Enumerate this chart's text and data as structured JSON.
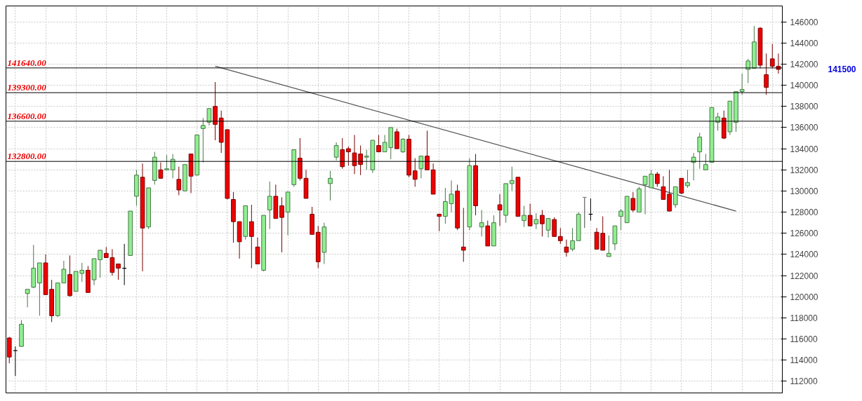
{
  "chart_data": {
    "type": "candlestick",
    "categories": [
      null,
      null,
      null,
      null,
      null,
      null,
      null,
      null,
      null,
      null,
      null,
      null,
      null,
      null,
      null,
      null,
      null,
      null,
      null,
      null,
      null,
      null,
      null,
      null,
      null,
      null,
      null,
      null,
      null,
      null,
      null,
      null,
      null,
      null,
      null,
      null,
      null,
      null,
      null,
      null,
      null,
      null,
      null,
      null,
      null,
      null,
      null,
      null,
      null,
      null,
      null,
      null,
      null,
      null,
      null,
      null,
      null,
      null,
      null,
      null,
      null,
      null,
      null,
      null,
      null,
      null,
      null,
      null,
      null,
      null,
      null,
      null,
      null,
      null,
      null,
      null,
      null,
      null,
      null,
      null,
      null,
      null,
      null,
      null,
      null,
      null,
      null,
      null,
      null,
      null,
      null,
      null,
      null,
      null,
      null,
      null,
      null,
      null,
      null,
      null,
      null,
      null,
      null,
      null,
      null,
      null,
      null,
      null,
      null,
      null,
      null,
      null,
      null,
      null,
      null,
      null,
      null,
      null,
      null,
      null,
      null,
      null,
      null,
      null,
      null,
      null,
      null,
      null
    ],
    "ohlc": [
      [
        116100,
        116200,
        113700,
        114300
      ],
      [
        114900,
        115300,
        112500,
        114900
      ],
      [
        115300,
        117800,
        115300,
        117400
      ],
      [
        120300,
        120700,
        119000,
        120700
      ],
      [
        120900,
        124900,
        120800,
        122700
      ],
      [
        121300,
        123200,
        118200,
        123200
      ],
      [
        123200,
        124000,
        120200,
        120200
      ],
      [
        120700,
        121600,
        117600,
        118200
      ],
      [
        118200,
        121300,
        118100,
        121300
      ],
      [
        121300,
        123400,
        121300,
        122600
      ],
      [
        122100,
        123900,
        120000,
        120100
      ],
      [
        120500,
        122400,
        120500,
        122400
      ],
      [
        122200,
        123200,
        121400,
        122500
      ],
      [
        122500,
        122900,
        120400,
        120400
      ],
      [
        121600,
        123600,
        121100,
        123600
      ],
      [
        123500,
        124400,
        121800,
        124400
      ],
      [
        124100,
        124700,
        123700,
        123700
      ],
      [
        123700,
        124500,
        122000,
        122300
      ],
      [
        123100,
        123100,
        121600,
        122700
      ],
      [
        122700,
        125000,
        121100,
        122700
      ],
      [
        123900,
        128100,
        123900,
        128100
      ],
      [
        129500,
        132000,
        128600,
        131500
      ],
      [
        131300,
        132600,
        122400,
        126500
      ],
      [
        126600,
        130300,
        126400,
        130300
      ],
      [
        131000,
        133700,
        130600,
        133200
      ],
      [
        132000,
        132700,
        131200,
        131200
      ],
      [
        132000,
        133400,
        132000,
        132100
      ],
      [
        132000,
        133500,
        131200,
        133000
      ],
      [
        131100,
        132300,
        129600,
        130100
      ],
      [
        130000,
        132500,
        130000,
        132500
      ],
      [
        133500,
        133500,
        129800,
        131400
      ],
      [
        131500,
        135300,
        131500,
        135300
      ],
      [
        135900,
        136900,
        132700,
        136200
      ],
      [
        136500,
        137800,
        136200,
        137800
      ],
      [
        138000,
        140300,
        134800,
        136300
      ],
      [
        136900,
        137600,
        133600,
        134600
      ],
      [
        135800,
        135800,
        129200,
        129300
      ],
      [
        129200,
        129900,
        125100,
        127100
      ],
      [
        127100,
        127100,
        123600,
        125200
      ],
      [
        125700,
        128600,
        125400,
        128600
      ],
      [
        127100,
        128700,
        122700,
        125700
      ],
      [
        124700,
        125600,
        123100,
        123100
      ],
      [
        122500,
        127700,
        122400,
        127700
      ],
      [
        128200,
        130900,
        126400,
        129500
      ],
      [
        129500,
        130600,
        127400,
        127400
      ],
      [
        128600,
        129400,
        124200,
        127500
      ],
      [
        128000,
        129900,
        125800,
        129900
      ],
      [
        130600,
        133900,
        130400,
        133900
      ],
      [
        133100,
        135000,
        131000,
        131200
      ],
      [
        131200,
        132000,
        129300,
        129300
      ],
      [
        127800,
        128500,
        125900,
        125900
      ],
      [
        126100,
        126700,
        122700,
        123300
      ],
      [
        124200,
        127000,
        123100,
        126600
      ],
      [
        130700,
        131900,
        129100,
        131200
      ],
      [
        133200,
        134600,
        132900,
        134300
      ],
      [
        133900,
        135000,
        132100,
        132300
      ],
      [
        134000,
        134200,
        132400,
        133700
      ],
      [
        133600,
        135300,
        131600,
        132400
      ],
      [
        133500,
        134300,
        131500,
        132500
      ],
      [
        133200,
        133900,
        132000,
        133300
      ],
      [
        132000,
        134800,
        131700,
        134800
      ],
      [
        134300,
        135300,
        133700,
        133700
      ],
      [
        133700,
        135300,
        133700,
        134600
      ],
      [
        134100,
        136000,
        133000,
        136000
      ],
      [
        135600,
        135900,
        134000,
        134000
      ],
      [
        133700,
        135000,
        133600,
        134900
      ],
      [
        134900,
        135300,
        131300,
        131500
      ],
      [
        131900,
        133100,
        130400,
        131100
      ],
      [
        132100,
        133300,
        131200,
        133300
      ],
      [
        133300,
        135700,
        132000,
        132000
      ],
      [
        132000,
        132600,
        129700,
        129700
      ],
      [
        127800,
        127800,
        126200,
        127600
      ],
      [
        127600,
        130300,
        126900,
        129000
      ],
      [
        128800,
        131000,
        128000,
        129700
      ],
      [
        130000,
        130600,
        126300,
        126500
      ],
      [
        124700,
        128400,
        123300,
        124400
      ],
      [
        126600,
        133100,
        126300,
        132400
      ],
      [
        132400,
        133500,
        127700,
        128600
      ],
      [
        126600,
        128200,
        125700,
        127000
      ],
      [
        126700,
        127200,
        124800,
        124800
      ],
      [
        124800,
        127700,
        124800,
        127000
      ],
      [
        128700,
        129700,
        126700,
        128200
      ],
      [
        127700,
        130700,
        127000,
        130700
      ],
      [
        130700,
        132300,
        130000,
        131000
      ],
      [
        131300,
        131300,
        127600,
        127600
      ],
      [
        127200,
        128600,
        126600,
        127700
      ],
      [
        127700,
        128800,
        126700,
        126700
      ],
      [
        126900,
        127900,
        126400,
        127300
      ],
      [
        127700,
        128200,
        125700,
        126900
      ],
      [
        126300,
        127400,
        125600,
        127400
      ],
      [
        127300,
        127500,
        125700,
        125700
      ],
      [
        125700,
        126500,
        125000,
        125300
      ],
      [
        124700,
        125400,
        123800,
        124200
      ],
      [
        124500,
        126500,
        124300,
        125300
      ],
      [
        125300,
        128000,
        125300,
        127800
      ],
      [
        129400,
        129400,
        126500,
        129400
      ],
      [
        127800,
        129300,
        127200,
        127800
      ],
      [
        126100,
        126500,
        124500,
        124500
      ],
      [
        126000,
        127600,
        124400,
        124400
      ],
      [
        123800,
        125800,
        123800,
        124100
      ],
      [
        125000,
        126700,
        124400,
        126700
      ],
      [
        127600,
        128300,
        126300,
        128100
      ],
      [
        127000,
        129500,
        127000,
        129500
      ],
      [
        129300,
        129900,
        128000,
        128200
      ],
      [
        128000,
        130400,
        128000,
        130200
      ],
      [
        130600,
        131400,
        127800,
        131400
      ],
      [
        130300,
        132000,
        130300,
        131600
      ],
      [
        131600,
        131800,
        130400,
        130700
      ],
      [
        130400,
        131400,
        129200,
        129200
      ],
      [
        129700,
        132000,
        128100,
        128100
      ],
      [
        128700,
        130400,
        128400,
        130400
      ],
      [
        131200,
        131200,
        129700,
        129800
      ],
      [
        130500,
        132000,
        130300,
        130800
      ],
      [
        132700,
        133600,
        131000,
        133200
      ],
      [
        133700,
        135500,
        132100,
        135100
      ],
      [
        132000,
        133500,
        132000,
        132500
      ],
      [
        132700,
        137900,
        132700,
        137900
      ],
      [
        136500,
        137400,
        135700,
        137000
      ],
      [
        136900,
        137600,
        134900,
        135000
      ],
      [
        135600,
        138500,
        135300,
        138500
      ],
      [
        136500,
        139400,
        135600,
        139400
      ],
      [
        139400,
        141100,
        139100,
        139600
      ],
      [
        141500,
        142500,
        140200,
        142300
      ],
      [
        141600,
        145600,
        141600,
        144100
      ],
      [
        145400,
        145500,
        141600,
        141900
      ],
      [
        141000,
        143000,
        139100,
        139800
      ],
      [
        142500,
        143900,
        141600,
        141800
      ],
      [
        141800,
        143000,
        141100,
        141500
      ]
    ],
    "colors": [
      "#ee0000",
      "#000000",
      "#90ee90",
      "#90ee90",
      "#90ee90",
      "#90ee90",
      "#ee0000",
      "#ee0000",
      "#90ee90",
      "#90ee90",
      "#ee0000",
      "#90ee90",
      "#90ee90",
      "#ee0000",
      "#90ee90",
      "#90ee90",
      "#ee0000",
      "#ee0000",
      "#ee0000",
      "#000000",
      "#90ee90",
      "#90ee90",
      "#ee0000",
      "#90ee90",
      "#90ee90",
      "#ee0000",
      "#90ee90",
      "#90ee90",
      "#ee0000",
      "#90ee90",
      "#ee0000",
      "#90ee90",
      "#90ee90",
      "#90ee90",
      "#ee0000",
      "#ee0000",
      "#ee0000",
      "#ee0000",
      "#ee0000",
      "#90ee90",
      "#ee0000",
      "#ee0000",
      "#90ee90",
      "#90ee90",
      "#ee0000",
      "#ee0000",
      "#90ee90",
      "#90ee90",
      "#ee0000",
      "#ee0000",
      "#ee0000",
      "#ee0000",
      "#90ee90",
      "#90ee90",
      "#90ee90",
      "#ee0000",
      "#ee0000",
      "#ee0000",
      "#ee0000",
      "#90ee90",
      "#90ee90",
      "#ee0000",
      "#90ee90",
      "#90ee90",
      "#ee0000",
      "#90ee90",
      "#ee0000",
      "#ee0000",
      "#90ee90",
      "#ee0000",
      "#ee0000",
      "#ee0000",
      "#90ee90",
      "#90ee90",
      "#ee0000",
      "#ee0000",
      "#90ee90",
      "#ee0000",
      "#90ee90",
      "#ee0000",
      "#90ee90",
      "#ee0000",
      "#90ee90",
      "#90ee90",
      "#ee0000",
      "#90ee90",
      "#ee0000",
      "#90ee90",
      "#ee0000",
      "#90ee90",
      "#ee0000",
      "#ee0000",
      "#ee0000",
      "#90ee90",
      "#90ee90",
      "#808080",
      "#000000",
      "#ee0000",
      "#ee0000",
      "#90ee90",
      "#90ee90",
      "#90ee90",
      "#90ee90",
      "#ee0000",
      "#90ee90",
      "#90ee90",
      "#90ee90",
      "#ee0000",
      "#ee0000",
      "#ee0000",
      "#90ee90",
      "#ee0000",
      "#90ee90",
      "#90ee90",
      "#90ee90",
      "#90ee90",
      "#90ee90",
      "#90ee90",
      "#ee0000",
      "#90ee90",
      "#90ee90",
      "#90ee90",
      "#90ee90",
      "#90ee90",
      "#ee0000",
      "#ee0000",
      "#ee0000",
      "#ee0000"
    ],
    "series": [
      {
        "type": "line",
        "values": [
          null,
          null,
          null,
          null,
          null,
          null,
          null,
          null,
          null,
          null,
          null,
          null,
          null,
          null,
          null,
          null,
          null,
          null,
          null,
          null,
          null,
          null,
          null,
          null,
          null,
          null,
          null,
          null,
          null,
          null,
          null,
          null,
          null,
          null,
          141800,
          null,
          null,
          null,
          null,
          null,
          null,
          null,
          null,
          null,
          null,
          null,
          null,
          null,
          null,
          null,
          null,
          null,
          null,
          null,
          null,
          null,
          null,
          null,
          null,
          null,
          null,
          null,
          null,
          null,
          null,
          null,
          null,
          null,
          null,
          null,
          null,
          null,
          null,
          null,
          null,
          null,
          null,
          null,
          null,
          null,
          null,
          null,
          null,
          null,
          null,
          null,
          null,
          null,
          null,
          null,
          null,
          null,
          null,
          null,
          null,
          null,
          null,
          null,
          null,
          null,
          null,
          null,
          null,
          null,
          null,
          null,
          null,
          null,
          null,
          null,
          null,
          null,
          null,
          null,
          null,
          null,
          null,
          null,
          null,
          null,
          128100,
          null,
          null,
          null,
          null,
          null,
          null,
          null
        ],
        "color": "#555555"
      }
    ],
    "ylim": [
      110900,
      147500
    ],
    "yticks": [
      112000,
      114000,
      116000,
      118000,
      120000,
      122000,
      124000,
      126000,
      128000,
      130000,
      132000,
      134000,
      136000,
      138000,
      140000,
      142000,
      144000,
      146000
    ],
    "ref_lines": [
      {
        "axis": "y",
        "value": 141640,
        "label": "141640.00",
        "color": "#000000"
      },
      {
        "axis": "y",
        "value": 139300,
        "label": "139300.00",
        "color": "#000000"
      },
      {
        "axis": "y",
        "value": 136600,
        "label": "136600.00",
        "color": "#000000"
      },
      {
        "axis": "y",
        "value": 132800,
        "label": "132800.00",
        "color": "#000000"
      }
    ],
    "annotations": [
      "141500"
    ],
    "grid": true
  }
}
